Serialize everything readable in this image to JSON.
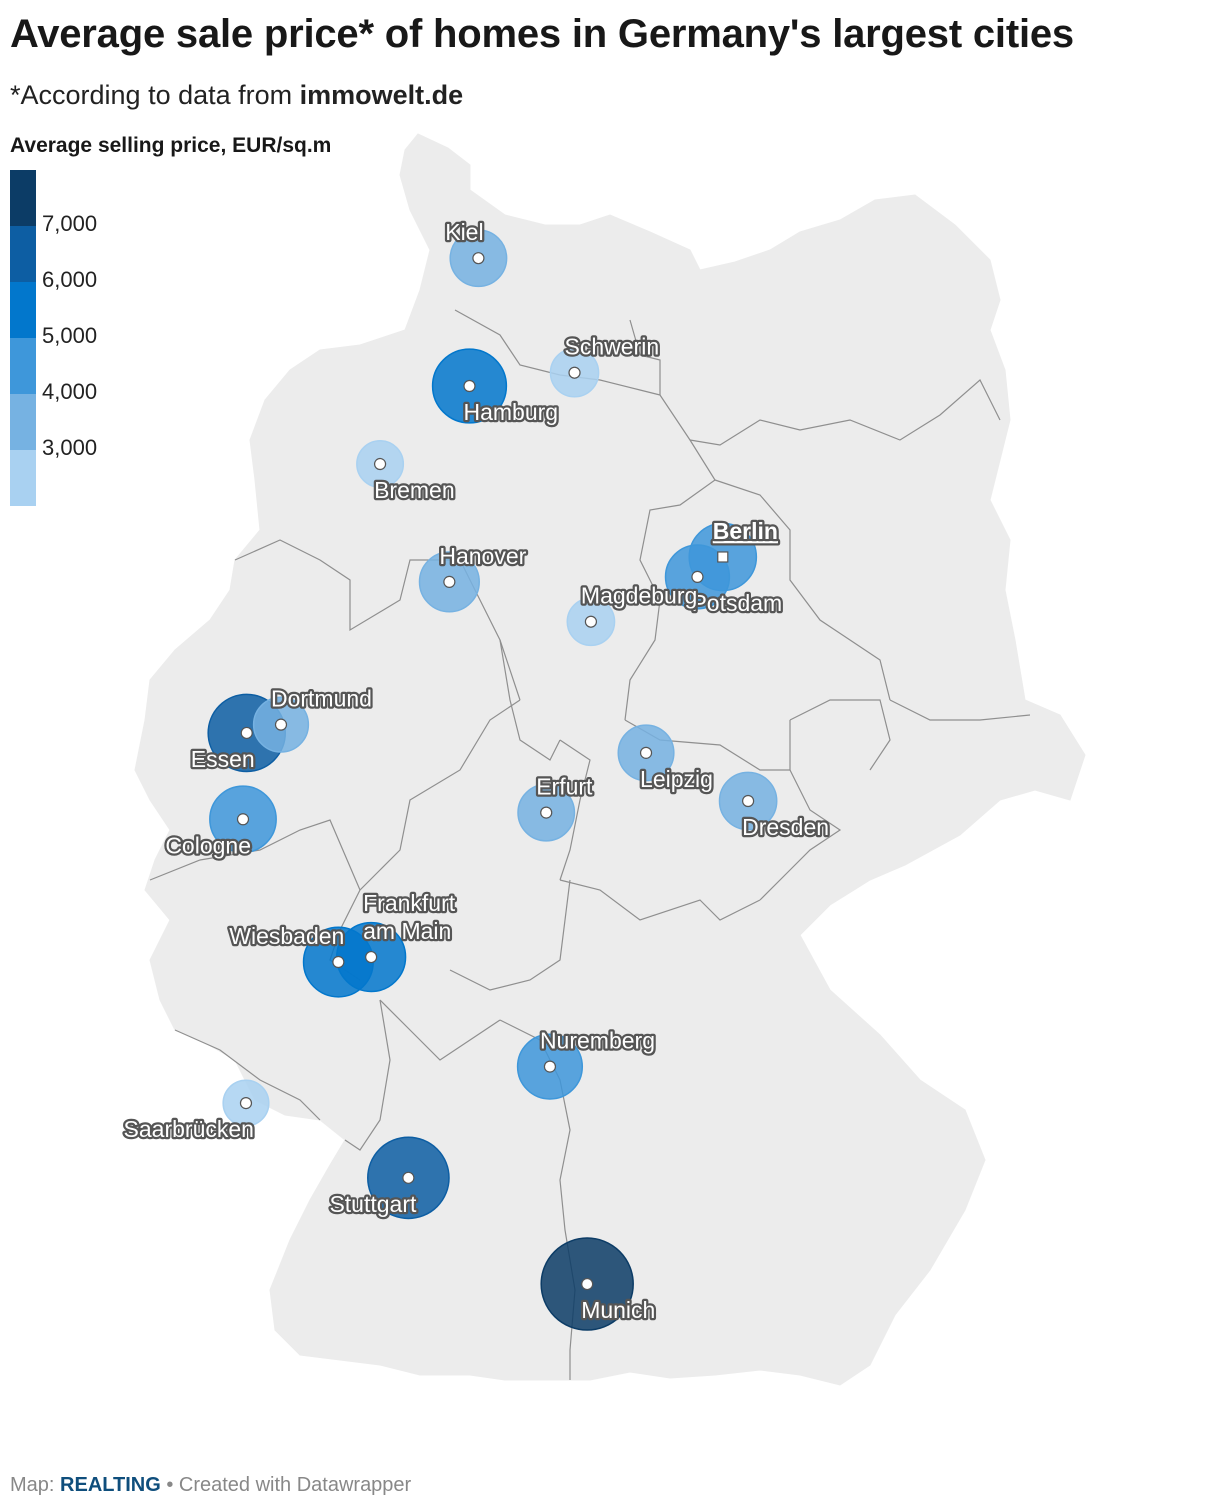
{
  "title": "Average sale price* of homes in Germany's largest cities",
  "subtitle": {
    "prefix": "*According to data from ",
    "source": "immowelt.de"
  },
  "legend": {
    "title": "Average selling price, EUR/sq.m",
    "colors": [
      "#0c3c66",
      "#0d5ea3",
      "#0277cc",
      "#3e97da",
      "#76b2e2",
      "#a9d1f1"
    ],
    "labels": [
      "7,000",
      "6,000",
      "5,000",
      "4,000",
      "3,000"
    ]
  },
  "footer": {
    "prefix": "Map: ",
    "brand": "REALTING",
    "suffix": " • Created with Datawrapper"
  },
  "map": {
    "country_fill": "#ececec",
    "border_color": "#8f8f8f",
    "cities": [
      {
        "name": "Kiel",
        "lon": 10.12,
        "lat": 54.32,
        "price": 3500,
        "anchor": "above"
      },
      {
        "name": "Schwerin",
        "lon": 11.41,
        "lat": 53.63,
        "price": 2500,
        "anchor": "above-right"
      },
      {
        "name": "Hamburg",
        "lon": 10.0,
        "lat": 53.55,
        "price": 5600,
        "anchor": "below-right"
      },
      {
        "name": "Bremen",
        "lon": 8.8,
        "lat": 53.08,
        "price": 2300,
        "anchor": "below-right"
      },
      {
        "name": "Hanover",
        "lon": 9.73,
        "lat": 52.37,
        "price": 3900,
        "anchor": "above-right"
      },
      {
        "name": "Berlin",
        "lon": 13.4,
        "lat": 52.52,
        "price": 4800,
        "anchor": "above-right",
        "capital": true
      },
      {
        "name": "Potsdam",
        "lon": 13.06,
        "lat": 52.4,
        "price": 4400,
        "anchor": "below-right"
      },
      {
        "name": "Magdeburg",
        "lon": 11.63,
        "lat": 52.13,
        "price": 2400,
        "anchor": "above-right"
      },
      {
        "name": "Dortmund",
        "lon": 7.47,
        "lat": 51.51,
        "price": 3300,
        "anchor": "above-right"
      },
      {
        "name": "Essen",
        "lon": 7.01,
        "lat": 51.46,
        "price": 6000,
        "anchor": "below-left"
      },
      {
        "name": "Cologne",
        "lon": 6.96,
        "lat": 50.94,
        "price": 4700,
        "anchor": "below-left"
      },
      {
        "name": "Leipzig",
        "lon": 12.37,
        "lat": 51.34,
        "price": 3400,
        "anchor": "below-right"
      },
      {
        "name": "Dresden",
        "lon": 13.74,
        "lat": 51.05,
        "price": 3600,
        "anchor": "below-right"
      },
      {
        "name": "Erfurt",
        "lon": 11.03,
        "lat": 50.98,
        "price": 3500,
        "anchor": "above-right"
      },
      {
        "name": "Frankfurt",
        "lon": 8.68,
        "lat": 50.11,
        "price": 5000,
        "anchor": "above-frankfurt"
      },
      {
        "name": "am Main",
        "lon": 8.68,
        "lat": 50.11,
        "price": null,
        "anchor": "above-frankfurt2"
      },
      {
        "name": "Wiesbaden",
        "lon": 8.24,
        "lat": 50.08,
        "price": 5100,
        "anchor": "above-left"
      },
      {
        "name": "Nuremberg",
        "lon": 11.08,
        "lat": 49.45,
        "price": 4500,
        "anchor": "above-right"
      },
      {
        "name": "Saarbrücken",
        "lon": 7.0,
        "lat": 49.23,
        "price": 2200,
        "anchor": "below-left"
      },
      {
        "name": "Stuttgart",
        "lon": 9.18,
        "lat": 48.78,
        "price": 6500,
        "anchor": "below-left"
      },
      {
        "name": "Munich",
        "lon": 11.58,
        "lat": 48.14,
        "price": 7800,
        "anchor": "below-right"
      }
    ]
  }
}
